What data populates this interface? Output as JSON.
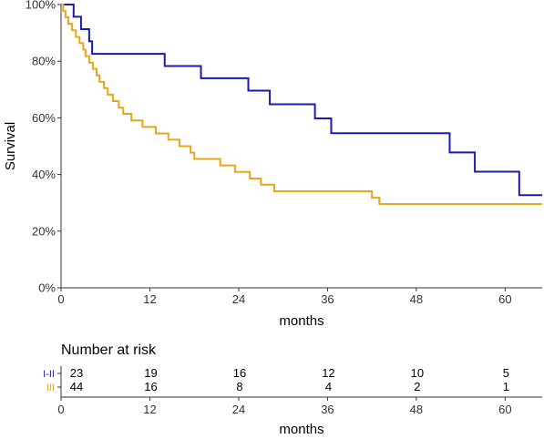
{
  "chart_data": [
    {
      "type": "line",
      "title": "",
      "xlabel": "months",
      "ylabel": "Survival",
      "xlim": [
        0,
        65
      ],
      "ylim": [
        0,
        1
      ],
      "x_ticks": [
        0,
        12,
        24,
        36,
        48,
        60
      ],
      "y_ticks": [
        0,
        0.2,
        0.4,
        0.6,
        0.8,
        1.0
      ],
      "y_tick_labels": [
        "0%",
        "20%",
        "40%",
        "60%",
        "80%",
        "100%"
      ],
      "grid": false,
      "step": true,
      "series": [
        {
          "name": "I-II",
          "color": "#1a1ab8",
          "x": [
            0,
            1.7,
            2.7,
            3.8,
            4.2,
            14.0,
            18.9,
            25.3,
            28.2,
            34.3,
            36.5,
            52.5,
            55.9,
            61.9,
            65
          ],
          "y": [
            1.0,
            0.957,
            0.913,
            0.87,
            0.826,
            0.783,
            0.74,
            0.696,
            0.648,
            0.598,
            0.546,
            0.478,
            0.41,
            0.327,
            0.327
          ]
        },
        {
          "name": "III",
          "color": "#e6a817",
          "x": [
            0,
            0.3,
            0.6,
            1.0,
            1.5,
            2.0,
            2.5,
            3.0,
            3.3,
            3.8,
            4.3,
            4.8,
            5.2,
            5.8,
            6.3,
            7.0,
            7.8,
            8.4,
            9.5,
            11.0,
            12.8,
            14.5,
            16.0,
            17.5,
            18.0,
            21.5,
            23.5,
            25.5,
            27.0,
            28.8,
            42.0,
            43.0,
            65
          ],
          "y": [
            1.0,
            0.977,
            0.955,
            0.932,
            0.909,
            0.886,
            0.864,
            0.841,
            0.818,
            0.795,
            0.773,
            0.75,
            0.727,
            0.705,
            0.682,
            0.659,
            0.636,
            0.614,
            0.591,
            0.568,
            0.545,
            0.523,
            0.5,
            0.477,
            0.455,
            0.432,
            0.409,
            0.386,
            0.364,
            0.341,
            0.318,
            0.296,
            0.296
          ]
        }
      ]
    },
    {
      "type": "table",
      "title": "Number at risk",
      "xlabel": "months",
      "xlim": [
        0,
        65
      ],
      "x_ticks": [
        0,
        12,
        24,
        36,
        48,
        60
      ],
      "time_points": [
        0,
        12,
        24,
        36,
        48,
        60
      ],
      "rows": [
        {
          "name": "I-II",
          "color": "#1a1ab8",
          "values": [
            "23",
            "19",
            "16",
            "12",
            "10",
            "5"
          ]
        },
        {
          "name": "III",
          "color": "#e6a817",
          "values": [
            "44",
            "16",
            "8",
            "4",
            "2",
            "1"
          ]
        }
      ]
    }
  ]
}
